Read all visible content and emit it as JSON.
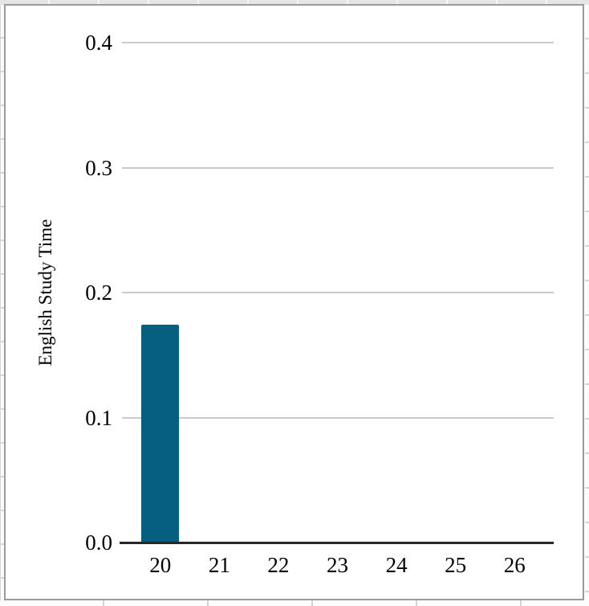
{
  "chart_data": {
    "type": "bar",
    "title": "",
    "xlabel": "",
    "ylabel": "English Study Time",
    "categories": [
      "20",
      "21",
      "22",
      "23",
      "24",
      "25",
      "26"
    ],
    "values": [
      0.174,
      0,
      0,
      0,
      0,
      0,
      0
    ],
    "ylim": [
      0,
      0.4
    ],
    "ytick_step": 0.1,
    "ytick_labels": [
      "0.0",
      "0.1",
      "0.2",
      "0.3",
      "0.4"
    ],
    "grid": true,
    "legend": false,
    "colors": {
      "bar": "#065f80",
      "gridline": "#cacaca",
      "axis": "#262626",
      "frame_border": "#9b9b9b",
      "text": "#000000"
    }
  }
}
